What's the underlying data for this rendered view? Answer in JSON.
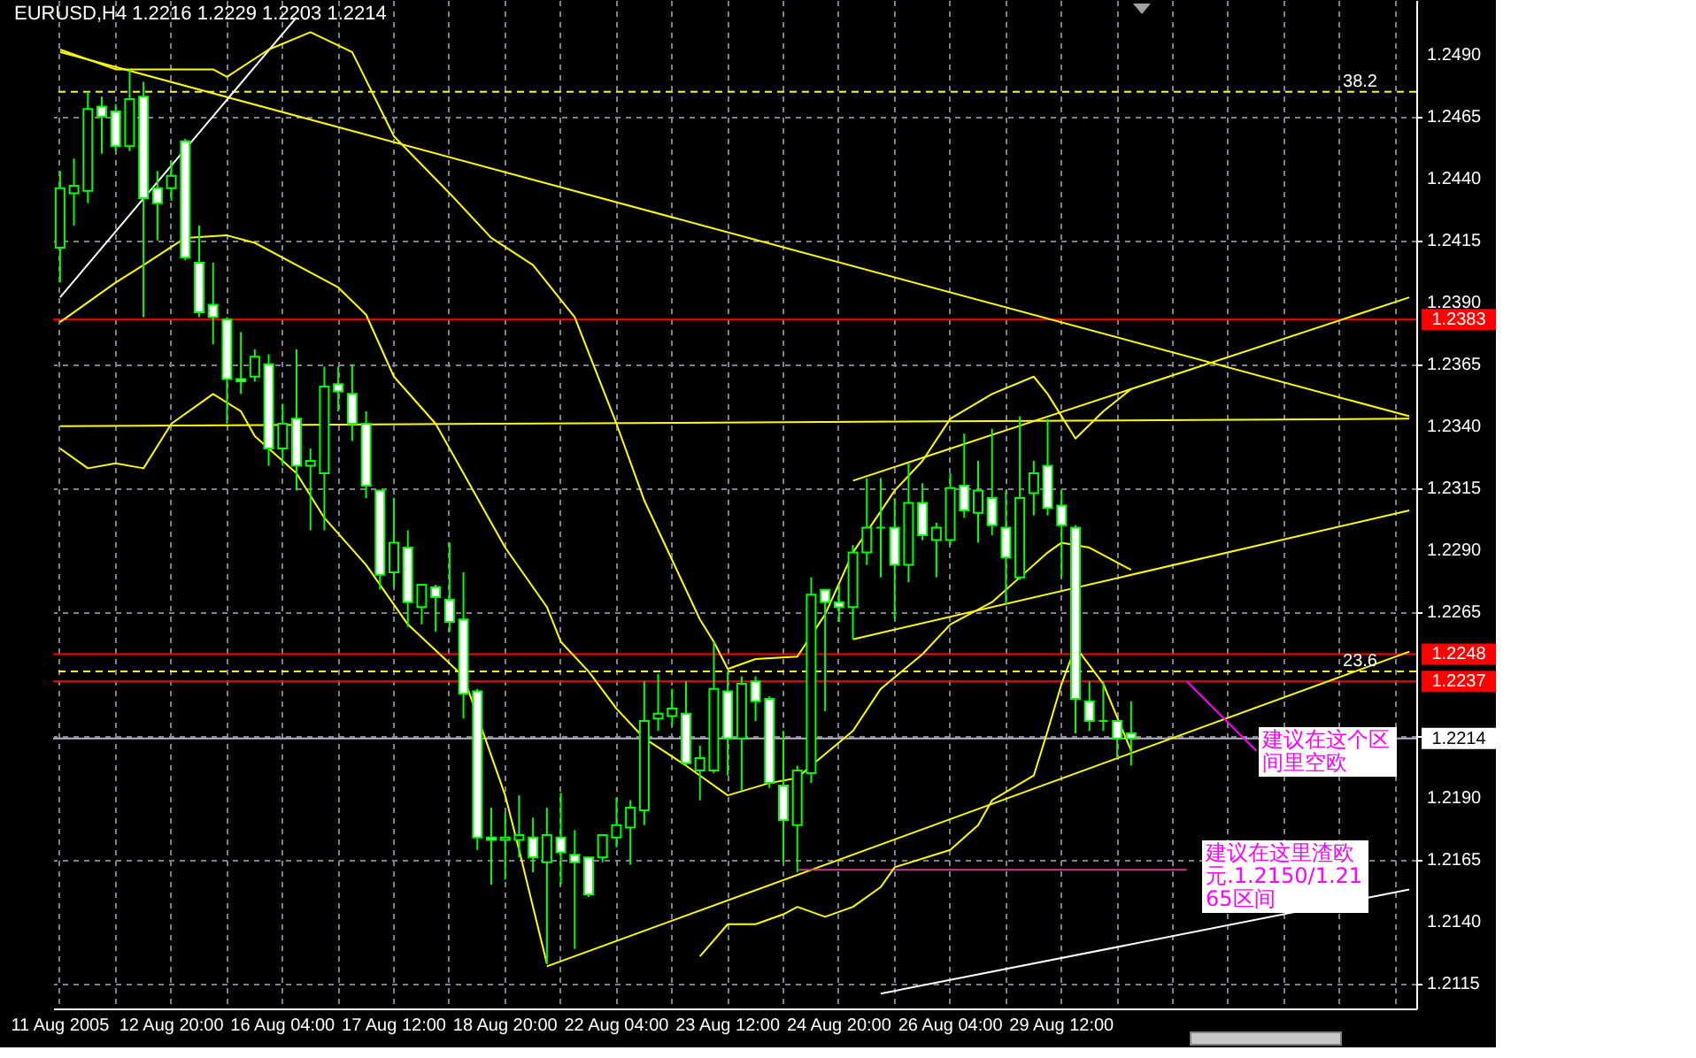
{
  "chart_data": {
    "type": "candlestick",
    "title": "EURUSD,H4  1.2216 1.2229 1.2203 1.2214",
    "color": "#00ff00",
    "categories": [
      "11 Aug 2005",
      null,
      null,
      null,
      null,
      null,
      null,
      null,
      "12 Aug 20:00",
      null,
      null,
      null,
      null,
      null,
      null,
      null,
      "16 Aug 04:00",
      null,
      null,
      null,
      null,
      null,
      null,
      null,
      "17 Aug 12:00",
      null,
      null,
      null,
      null,
      null,
      null,
      null,
      "18 Aug 20:00",
      null,
      null,
      null,
      null,
      null,
      null,
      null,
      "22 Aug 04:00",
      null,
      null,
      null,
      null,
      null,
      null,
      null,
      "23 Aug 12:00",
      null,
      null,
      null,
      null,
      null,
      null,
      null,
      "24 Aug 20:00",
      null,
      null,
      null,
      null,
      null,
      null,
      null,
      "26 Aug 04:00",
      null,
      null,
      null,
      null,
      null,
      null,
      null,
      "29 Aug 12:00",
      null,
      null,
      null,
      null,
      null,
      null,
      null,
      null,
      null,
      null,
      null,
      null,
      null,
      null,
      null,
      null,
      null,
      null,
      null,
      null,
      null,
      null,
      null,
      null,
      null
    ],
    "ohlc": [
      [
        1.2412,
        1.2443,
        1.2398,
        1.2436
      ],
      [
        1.2434,
        1.2448,
        1.2421,
        1.2437
      ],
      [
        1.2435,
        1.2475,
        1.243,
        1.2468
      ],
      [
        1.2469,
        1.2473,
        1.245,
        1.2465
      ],
      [
        1.2467,
        1.247,
        1.2451,
        1.2453
      ],
      [
        1.2453,
        1.2484,
        1.2451,
        1.2472
      ],
      [
        1.2473,
        1.2479,
        1.2384,
        1.2432
      ],
      [
        1.2436,
        1.2443,
        1.2415,
        1.243
      ],
      [
        1.2436,
        1.2447,
        1.2431,
        1.2441
      ],
      [
        1.2455,
        1.2456,
        1.2407,
        1.2408
      ],
      [
        1.2406,
        1.2421,
        1.2384,
        1.2386
      ],
      [
        1.2389,
        1.2406,
        1.2373,
        1.2384
      ],
      [
        1.2383,
        1.2384,
        1.2341,
        1.2359
      ],
      [
        1.2359,
        1.2378,
        1.2353,
        1.2358
      ],
      [
        1.236,
        1.2371,
        1.2358,
        1.2368
      ],
      [
        1.2365,
        1.2369,
        1.2324,
        1.2331
      ],
      [
        1.2331,
        1.2349,
        1.2324,
        1.2341
      ],
      [
        1.2343,
        1.2371,
        1.2314,
        1.2324
      ],
      [
        1.2324,
        1.2331,
        1.2298,
        1.2326
      ],
      [
        1.2321,
        1.2364,
        1.2298,
        1.2356
      ],
      [
        1.2357,
        1.2364,
        1.2346,
        1.2354
      ],
      [
        1.2353,
        1.2365,
        1.2334,
        1.2341
      ],
      [
        1.2341,
        1.2346,
        1.2311,
        1.2316
      ],
      [
        1.2314,
        1.2314,
        1.2274,
        1.228
      ],
      [
        1.2281,
        1.2311,
        1.2275,
        1.2293
      ],
      [
        1.2291,
        1.2298,
        1.2259,
        1.2269
      ],
      [
        1.2267,
        1.2276,
        1.226,
        1.2276
      ],
      [
        1.2275,
        1.2276,
        1.2257,
        1.2271
      ],
      [
        1.227,
        1.2293,
        1.2257,
        1.2261
      ],
      [
        1.2262,
        1.2281,
        1.2222,
        1.2232
      ],
      [
        1.2233,
        1.2234,
        1.2169,
        1.2174
      ],
      [
        1.2174,
        1.2186,
        1.2155,
        1.2173
      ],
      [
        1.2173,
        1.2184,
        1.2157,
        1.2174
      ],
      [
        1.2173,
        1.2191,
        1.2166,
        1.2175
      ],
      [
        1.2174,
        1.2182,
        1.216,
        1.2166
      ],
      [
        1.2164,
        1.2186,
        1.2123,
        1.2175
      ],
      [
        1.2174,
        1.2192,
        1.2155,
        1.2168
      ],
      [
        1.2167,
        1.2177,
        1.2129,
        1.2164
      ],
      [
        1.2166,
        1.2166,
        1.215,
        1.2151
      ],
      [
        1.2166,
        1.2175,
        1.2164,
        1.2175
      ],
      [
        1.2174,
        1.219,
        1.217,
        1.2179
      ],
      [
        1.2178,
        1.2189,
        1.2163,
        1.2186
      ],
      [
        1.2185,
        1.2237,
        1.2179,
        1.2221
      ],
      [
        1.2222,
        1.224,
        1.2217,
        1.2224
      ],
      [
        1.2223,
        1.2234,
        1.2219,
        1.2226
      ],
      [
        1.2224,
        1.2237,
        1.2203,
        1.2204
      ],
      [
        1.2201,
        1.2211,
        1.2189,
        1.2206
      ],
      [
        1.2201,
        1.2253,
        1.22,
        1.2234
      ],
      [
        1.2233,
        1.2241,
        1.2199,
        1.2214
      ],
      [
        1.2214,
        1.2239,
        1.2193,
        1.2236
      ],
      [
        1.2237,
        1.2239,
        1.2221,
        1.2229
      ],
      [
        1.223,
        1.2231,
        1.2194,
        1.2196
      ],
      [
        1.2195,
        1.2217,
        1.2164,
        1.2181
      ],
      [
        1.2179,
        1.2203,
        1.216,
        1.2201
      ],
      [
        1.22,
        1.2279,
        1.2196,
        1.2272
      ],
      [
        1.2274,
        1.2274,
        1.2225,
        1.2269
      ],
      [
        1.2269,
        1.2276,
        1.2261,
        1.2267
      ],
      [
        1.2267,
        1.2292,
        1.2254,
        1.2289
      ],
      [
        1.2289,
        1.2319,
        1.2284,
        1.2299
      ],
      [
        1.2299,
        1.2319,
        1.2279,
        1.2299
      ],
      [
        1.2299,
        1.2311,
        1.2262,
        1.2284
      ],
      [
        1.2284,
        1.2325,
        1.2277,
        1.2309
      ],
      [
        1.2309,
        1.2317,
        1.2294,
        1.2296
      ],
      [
        1.2294,
        1.2301,
        1.2279,
        1.2299
      ],
      [
        1.2294,
        1.2321,
        1.2292,
        1.2315
      ],
      [
        1.2316,
        1.2337,
        1.2303,
        1.2306
      ],
      [
        1.2305,
        1.2326,
        1.2293,
        1.2314
      ],
      [
        1.2311,
        1.2339,
        1.2296,
        1.23
      ],
      [
        1.2299,
        1.2314,
        1.2268,
        1.2287
      ],
      [
        1.2279,
        1.2344,
        1.2278,
        1.2311
      ],
      [
        1.2313,
        1.2326,
        1.2304,
        1.2321
      ],
      [
        1.2324,
        1.2343,
        1.2304,
        1.2307
      ],
      [
        1.2308,
        1.2314,
        1.2279,
        1.23
      ],
      [
        1.2299,
        1.23,
        1.2216,
        1.223
      ],
      [
        1.2229,
        1.2237,
        1.2217,
        1.2221
      ],
      [
        1.2221,
        1.2237,
        1.2217,
        1.2221
      ],
      [
        1.2221,
        1.2221,
        1.2206,
        1.2214
      ],
      [
        1.2216,
        1.2229,
        1.2203,
        1.2214
      ],
      null,
      null,
      null,
      null,
      null,
      null,
      null,
      null,
      null,
      null,
      null,
      null,
      null,
      null,
      null,
      null,
      null,
      null,
      null,
      null
    ],
    "ylim": [
      1.2105,
      1.2512
    ],
    "yticks": [
      {
        "value": 1.249,
        "label": "1.2490"
      },
      {
        "value": 1.2465,
        "label": "1.2465"
      },
      {
        "value": 1.244,
        "label": "1.2440"
      },
      {
        "value": 1.2415,
        "label": "1.2415"
      },
      {
        "value": 1.239,
        "label": "1.2390"
      },
      {
        "value": 1.2365,
        "label": "1.2365"
      },
      {
        "value": 1.234,
        "label": "1.2340"
      },
      {
        "value": 1.2315,
        "label": "1.2315"
      },
      {
        "value": 1.229,
        "label": "1.2290"
      },
      {
        "value": 1.2265,
        "label": "1.2265"
      },
      {
        "value": 1.224,
        "label": null
      },
      {
        "value": 1.2215,
        "label": null
      },
      {
        "value": 1.219,
        "label": "1.2190"
      },
      {
        "value": 1.2165,
        "label": "1.2165"
      },
      {
        "value": 1.214,
        "label": "1.2140"
      },
      {
        "value": 1.2115,
        "label": "1.2115"
      }
    ],
    "grid": true,
    "series": [
      {
        "type": "line",
        "color": "#ffff00",
        "values": [
          1.2491,
          null,
          null,
          null,
          null,
          null,
          null,
          null,
          null,
          null,
          null,
          null,
          null,
          null,
          null,
          null,
          null,
          null,
          null,
          null,
          null,
          null,
          null,
          null,
          null,
          null,
          null,
          null,
          null,
          null,
          null,
          null,
          null,
          null,
          null,
          null,
          null,
          null,
          null,
          null,
          null,
          null,
          null,
          null,
          null,
          null,
          null,
          null,
          null,
          null,
          null,
          null,
          null,
          null,
          null,
          null,
          null,
          null,
          null,
          null,
          null,
          null,
          null,
          null,
          null,
          null,
          null,
          null,
          null,
          null,
          null,
          null,
          null,
          null,
          null,
          null,
          null,
          null,
          null,
          null,
          null,
          null,
          null,
          null,
          null,
          null,
          null,
          null,
          null,
          null,
          null,
          null,
          null,
          null,
          null,
          null,
          null,
          1.2344
        ]
      },
      {
        "type": "line",
        "color": "#ffff00",
        "values": [
          1.234,
          null,
          null,
          null,
          null,
          null,
          null,
          null,
          null,
          null,
          null,
          null,
          null,
          null,
          null,
          null,
          null,
          null,
          null,
          null,
          null,
          null,
          null,
          null,
          null,
          null,
          null,
          null,
          null,
          null,
          null,
          null,
          null,
          null,
          null,
          null,
          null,
          null,
          null,
          null,
          null,
          null,
          null,
          null,
          null,
          null,
          null,
          null,
          null,
          null,
          null,
          null,
          null,
          null,
          null,
          null,
          null,
          null,
          null,
          null,
          null,
          null,
          null,
          null,
          null,
          null,
          null,
          null,
          null,
          null,
          null,
          null,
          null,
          null,
          null,
          null,
          null,
          null,
          null,
          null,
          null,
          null,
          null,
          null,
          null,
          null,
          null,
          null,
          null,
          null,
          null,
          null,
          null,
          null,
          null,
          null,
          null,
          1.2343
        ]
      },
      {
        "type": "line",
        "color": "#ffff00",
        "values": [
          null,
          null,
          null,
          null,
          null,
          null,
          null,
          null,
          null,
          null,
          null,
          null,
          null,
          null,
          null,
          null,
          null,
          null,
          null,
          null,
          null,
          null,
          null,
          null,
          null,
          null,
          null,
          null,
          null,
          null,
          null,
          null,
          null,
          null,
          null,
          null,
          null,
          null,
          null,
          null,
          null,
          null,
          null,
          null,
          null,
          null,
          null,
          null,
          null,
          null,
          null,
          null,
          null,
          null,
          null,
          null,
          null,
          1.2318,
          null,
          null,
          null,
          null,
          null,
          null,
          null,
          null,
          null,
          null,
          null,
          null,
          null,
          null,
          null,
          null,
          null,
          null,
          null,
          null,
          null,
          null,
          null,
          null,
          null,
          null,
          null,
          null,
          null,
          null,
          null,
          null,
          null,
          null,
          null,
          null,
          null,
          null,
          null,
          1.2392
        ]
      },
      {
        "type": "line",
        "color": "#ffff00",
        "values": [
          null,
          null,
          null,
          null,
          null,
          null,
          null,
          null,
          null,
          null,
          null,
          null,
          null,
          null,
          null,
          null,
          null,
          null,
          null,
          null,
          null,
          null,
          null,
          null,
          null,
          null,
          null,
          null,
          null,
          null,
          null,
          null,
          null,
          null,
          null,
          null,
          null,
          null,
          null,
          null,
          null,
          null,
          null,
          null,
          null,
          null,
          null,
          null,
          null,
          null,
          null,
          null,
          null,
          null,
          null,
          null,
          null,
          1.2254,
          null,
          null,
          null,
          null,
          null,
          null,
          null,
          null,
          null,
          null,
          null,
          null,
          null,
          null,
          null,
          null,
          null,
          null,
          null,
          null,
          null,
          null,
          null,
          null,
          null,
          null,
          null,
          null,
          null,
          null,
          null,
          null,
          null,
          null,
          null,
          null,
          null,
          null,
          null,
          1.2306
        ]
      },
      {
        "type": "line",
        "color": "#ffff00",
        "values": [
          null,
          null,
          null,
          null,
          null,
          null,
          null,
          null,
          null,
          null,
          null,
          null,
          null,
          null,
          null,
          null,
          null,
          null,
          null,
          null,
          null,
          null,
          null,
          null,
          null,
          null,
          null,
          null,
          null,
          null,
          null,
          null,
          null,
          null,
          null,
          1.2122,
          null,
          null,
          null,
          null,
          null,
          null,
          null,
          null,
          null,
          null,
          null,
          null,
          null,
          null,
          null,
          null,
          null,
          null,
          null,
          null,
          null,
          null,
          null,
          null,
          null,
          null,
          null,
          null,
          null,
          null,
          null,
          null,
          null,
          null,
          null,
          null,
          null,
          null,
          null,
          null,
          null,
          null,
          null,
          null,
          null,
          null,
          null,
          null,
          null,
          null,
          null,
          null,
          null,
          null,
          null,
          null,
          null,
          null,
          null,
          null,
          null,
          1.2249
        ]
      },
      {
        "type": "line",
        "color": "#ffffff",
        "values": [
          null,
          null,
          null,
          null,
          null,
          null,
          null,
          null,
          null,
          null,
          null,
          null,
          null,
          null,
          null,
          null,
          null,
          null,
          null,
          null,
          null,
          null,
          null,
          null,
          null,
          null,
          null,
          null,
          null,
          null,
          null,
          null,
          null,
          null,
          null,
          null,
          null,
          null,
          null,
          null,
          null,
          null,
          null,
          null,
          null,
          null,
          null,
          null,
          null,
          null,
          null,
          null,
          null,
          null,
          null,
          null,
          null,
          null,
          null,
          1.2111,
          null,
          null,
          null,
          null,
          null,
          null,
          null,
          null,
          null,
          null,
          null,
          null,
          null,
          null,
          null,
          null,
          null,
          null,
          null,
          null,
          null,
          null,
          null,
          null,
          null,
          null,
          null,
          null,
          null,
          null,
          null,
          null,
          null,
          null,
          null,
          null,
          null,
          1.2153
        ]
      },
      {
        "type": "line",
        "color": "#ffffff",
        "values": [
          1.2392,
          null,
          null,
          null,
          null,
          null,
          null,
          null,
          null,
          null,
          null,
          null,
          null,
          null,
          null,
          null,
          null,
          1.2505,
          null,
          null,
          null,
          null,
          null,
          null,
          null,
          null,
          null,
          null,
          null,
          null,
          null,
          null,
          null,
          null,
          null,
          null,
          null,
          null,
          null,
          null,
          null,
          null,
          null,
          null,
          null,
          null,
          null,
          null,
          null,
          null,
          null,
          null,
          null,
          null,
          null,
          null,
          null,
          null,
          null,
          null,
          null,
          null,
          null,
          null,
          null,
          null,
          null,
          null,
          null,
          null,
          null,
          null,
          null,
          null,
          null,
          null,
          null,
          null,
          null,
          null,
          null,
          null,
          null,
          null,
          null,
          null,
          null,
          null,
          null,
          null,
          null,
          null,
          null,
          null,
          null,
          null,
          null,
          null
        ]
      },
      {
        "type": "line",
        "color": "#e0308c",
        "values": [
          null,
          null,
          null,
          null,
          null,
          null,
          null,
          null,
          null,
          null,
          null,
          null,
          null,
          null,
          null,
          null,
          null,
          null,
          null,
          null,
          null,
          null,
          null,
          null,
          null,
          null,
          null,
          null,
          null,
          null,
          null,
          null,
          null,
          null,
          null,
          null,
          null,
          null,
          null,
          null,
          null,
          null,
          null,
          null,
          null,
          null,
          null,
          null,
          null,
          null,
          null,
          null,
          null,
          1.2161,
          null,
          null,
          null,
          null,
          null,
          null,
          null,
          null,
          null,
          null,
          null,
          null,
          null,
          null,
          null,
          null,
          null,
          null,
          null,
          null,
          null,
          null,
          null,
          null,
          null,
          null,
          null,
          1.2161,
          null,
          null,
          null,
          null,
          null,
          null,
          null,
          null,
          null,
          null,
          null,
          null,
          null,
          null,
          null,
          null
        ]
      },
      {
        "type": "line",
        "color": "#ff00ff",
        "values": [
          null,
          null,
          null,
          null,
          null,
          null,
          null,
          null,
          null,
          null,
          null,
          null,
          null,
          null,
          null,
          null,
          null,
          null,
          null,
          null,
          null,
          null,
          null,
          null,
          null,
          null,
          null,
          null,
          null,
          null,
          null,
          null,
          null,
          null,
          null,
          null,
          null,
          null,
          null,
          null,
          null,
          null,
          null,
          null,
          null,
          null,
          null,
          null,
          null,
          null,
          null,
          null,
          null,
          null,
          null,
          null,
          null,
          null,
          null,
          null,
          null,
          null,
          null,
          null,
          null,
          null,
          null,
          null,
          null,
          null,
          null,
          null,
          null,
          null,
          null,
          null,
          null,
          null,
          null,
          null,
          null,
          1.2237,
          null,
          null,
          null,
          null,
          1.2209,
          null,
          null,
          null,
          null,
          null,
          null,
          null,
          null,
          null,
          null,
          null
        ]
      },
      {
        "type": "line",
        "color": "#ffff00",
        "values": [
          1.2492,
          null,
          null,
          null,
          1.2484,
          null,
          null,
          null,
          null,
          null,
          null,
          1.2484,
          1.2481,
          null,
          null,
          1.2492,
          null,
          null,
          1.2499,
          null,
          null,
          1.2491,
          null,
          null,
          1.2457,
          null,
          null,
          null,
          1.2434,
          null,
          null,
          1.2416,
          null,
          null,
          1.2405,
          null,
          null,
          1.2384,
          null,
          null,
          1.2341,
          null,
          1.231,
          null,
          1.2286,
          null,
          1.2262,
          1.2253,
          1.2242,
          null,
          1.2246,
          null,
          null,
          1.2247,
          null,
          1.2264,
          null,
          1.2289,
          null,
          null,
          1.2314,
          null,
          1.2326,
          null,
          1.2343,
          null,
          null,
          1.2353,
          null,
          null,
          1.236,
          1.2353,
          null,
          1.2335,
          null,
          1.2346,
          null,
          1.2355,
          null,
          null,
          null,
          null,
          null,
          null,
          null,
          null,
          null,
          null,
          null,
          null,
          null,
          null,
          null,
          null,
          null,
          null,
          null,
          null
        ]
      },
      {
        "type": "line",
        "color": "#ffff00",
        "values": [
          1.2382,
          null,
          null,
          null,
          1.2398,
          null,
          1.2405,
          null,
          null,
          1.2416,
          null,
          null,
          1.2417,
          null,
          1.2414,
          null,
          null,
          1.2405,
          null,
          null,
          1.2396,
          null,
          1.2385,
          null,
          1.236,
          null,
          null,
          1.2341,
          null,
          null,
          null,
          null,
          1.2291,
          null,
          null,
          1.2267,
          1.2253,
          null,
          1.2241,
          null,
          1.2226,
          null,
          1.2214,
          null,
          null,
          1.2203,
          null,
          null,
          1.2191,
          null,
          null,
          1.2196,
          null,
          1.2198,
          1.2203,
          null,
          null,
          1.2217,
          null,
          1.2234,
          null,
          null,
          1.2248,
          null,
          1.226,
          null,
          null,
          1.2269,
          null,
          1.2279,
          null,
          1.2289,
          1.2293,
          null,
          1.2291,
          null,
          null,
          1.2282,
          null,
          null,
          null,
          null,
          null,
          null,
          null,
          null,
          null,
          null,
          null,
          null,
          null,
          null,
          null,
          null,
          null,
          null,
          null,
          null
        ]
      },
      {
        "type": "line",
        "color": "#ffff00",
        "values": [
          1.2331,
          null,
          1.2323,
          null,
          1.2325,
          null,
          1.2323,
          null,
          1.2341,
          null,
          null,
          1.2353,
          null,
          1.2346,
          1.2336,
          null,
          null,
          1.2321,
          null,
          1.2303,
          null,
          null,
          1.2284,
          null,
          null,
          1.226,
          null,
          null,
          null,
          1.2239,
          null,
          null,
          1.2191,
          1.2169,
          null,
          1.2123,
          null,
          null,
          null,
          null,
          null,
          null,
          null,
          null,
          null,
          null,
          null,
          null,
          null,
          null,
          null,
          null,
          null,
          null,
          null,
          null,
          null,
          null,
          null,
          null,
          null,
          null,
          null,
          null,
          null,
          null,
          null,
          null,
          null,
          null,
          null,
          null,
          null,
          null,
          null,
          null,
          null,
          null,
          null,
          null,
          null,
          null,
          null,
          null,
          null,
          null,
          null,
          null,
          null,
          null,
          null,
          null,
          null,
          null,
          null,
          null,
          null,
          null
        ]
      },
      {
        "type": "line",
        "color": "#ffff00",
        "values": [
          null,
          null,
          null,
          null,
          null,
          null,
          null,
          null,
          null,
          null,
          null,
          null,
          null,
          null,
          null,
          null,
          null,
          null,
          null,
          null,
          null,
          null,
          null,
          null,
          null,
          null,
          null,
          null,
          null,
          null,
          null,
          null,
          null,
          null,
          null,
          null,
          null,
          null,
          null,
          null,
          null,
          null,
          null,
          null,
          null,
          null,
          1.2126,
          null,
          1.2139,
          null,
          1.2139,
          null,
          1.2143,
          1.2146,
          null,
          1.2142,
          null,
          1.2146,
          null,
          1.2154,
          1.2162,
          null,
          null,
          null,
          1.2169,
          null,
          1.2179,
          1.2189,
          null,
          null,
          1.2199,
          1.2217,
          1.2236,
          1.2251,
          null,
          1.2236,
          null,
          1.2209,
          null,
          null,
          null,
          null,
          null,
          null,
          null,
          null,
          null,
          null,
          null,
          null,
          null,
          null,
          null,
          null,
          null,
          null,
          null,
          null
        ]
      }
    ],
    "ref_lines": [
      {
        "axis": "y",
        "value": 1.2383,
        "label": "1.2383",
        "color": "#ff0000",
        "line_style": "solid"
      },
      {
        "axis": "y",
        "value": 1.2248,
        "label": "1.2248",
        "color": "#ff0000",
        "line_style": "solid"
      },
      {
        "axis": "y",
        "value": 1.2237,
        "label": "1.2237",
        "color": "#ff0000",
        "line_style": "solid"
      },
      {
        "axis": "y",
        "value": 1.2214,
        "label": "1.2214",
        "color": "#b4b4c4",
        "line_style": "solid"
      },
      {
        "axis": "y",
        "value": 1.2475,
        "color": "#ffff00",
        "line_style": "dashed"
      },
      {
        "axis": "y",
        "value": 1.2241,
        "color": "#ffff00",
        "line_style": "dashed"
      }
    ],
    "annotations": [
      {
        "text": "建议在这个区间里空欧",
        "y": 1.2237
      },
      "建议在这里渣欧元.1.2150/1.2165区间",
      {
        "text": "38.2",
        "y": 1.2475
      },
      {
        "text": "23.6",
        "y": 1.2241
      }
    ]
  }
}
